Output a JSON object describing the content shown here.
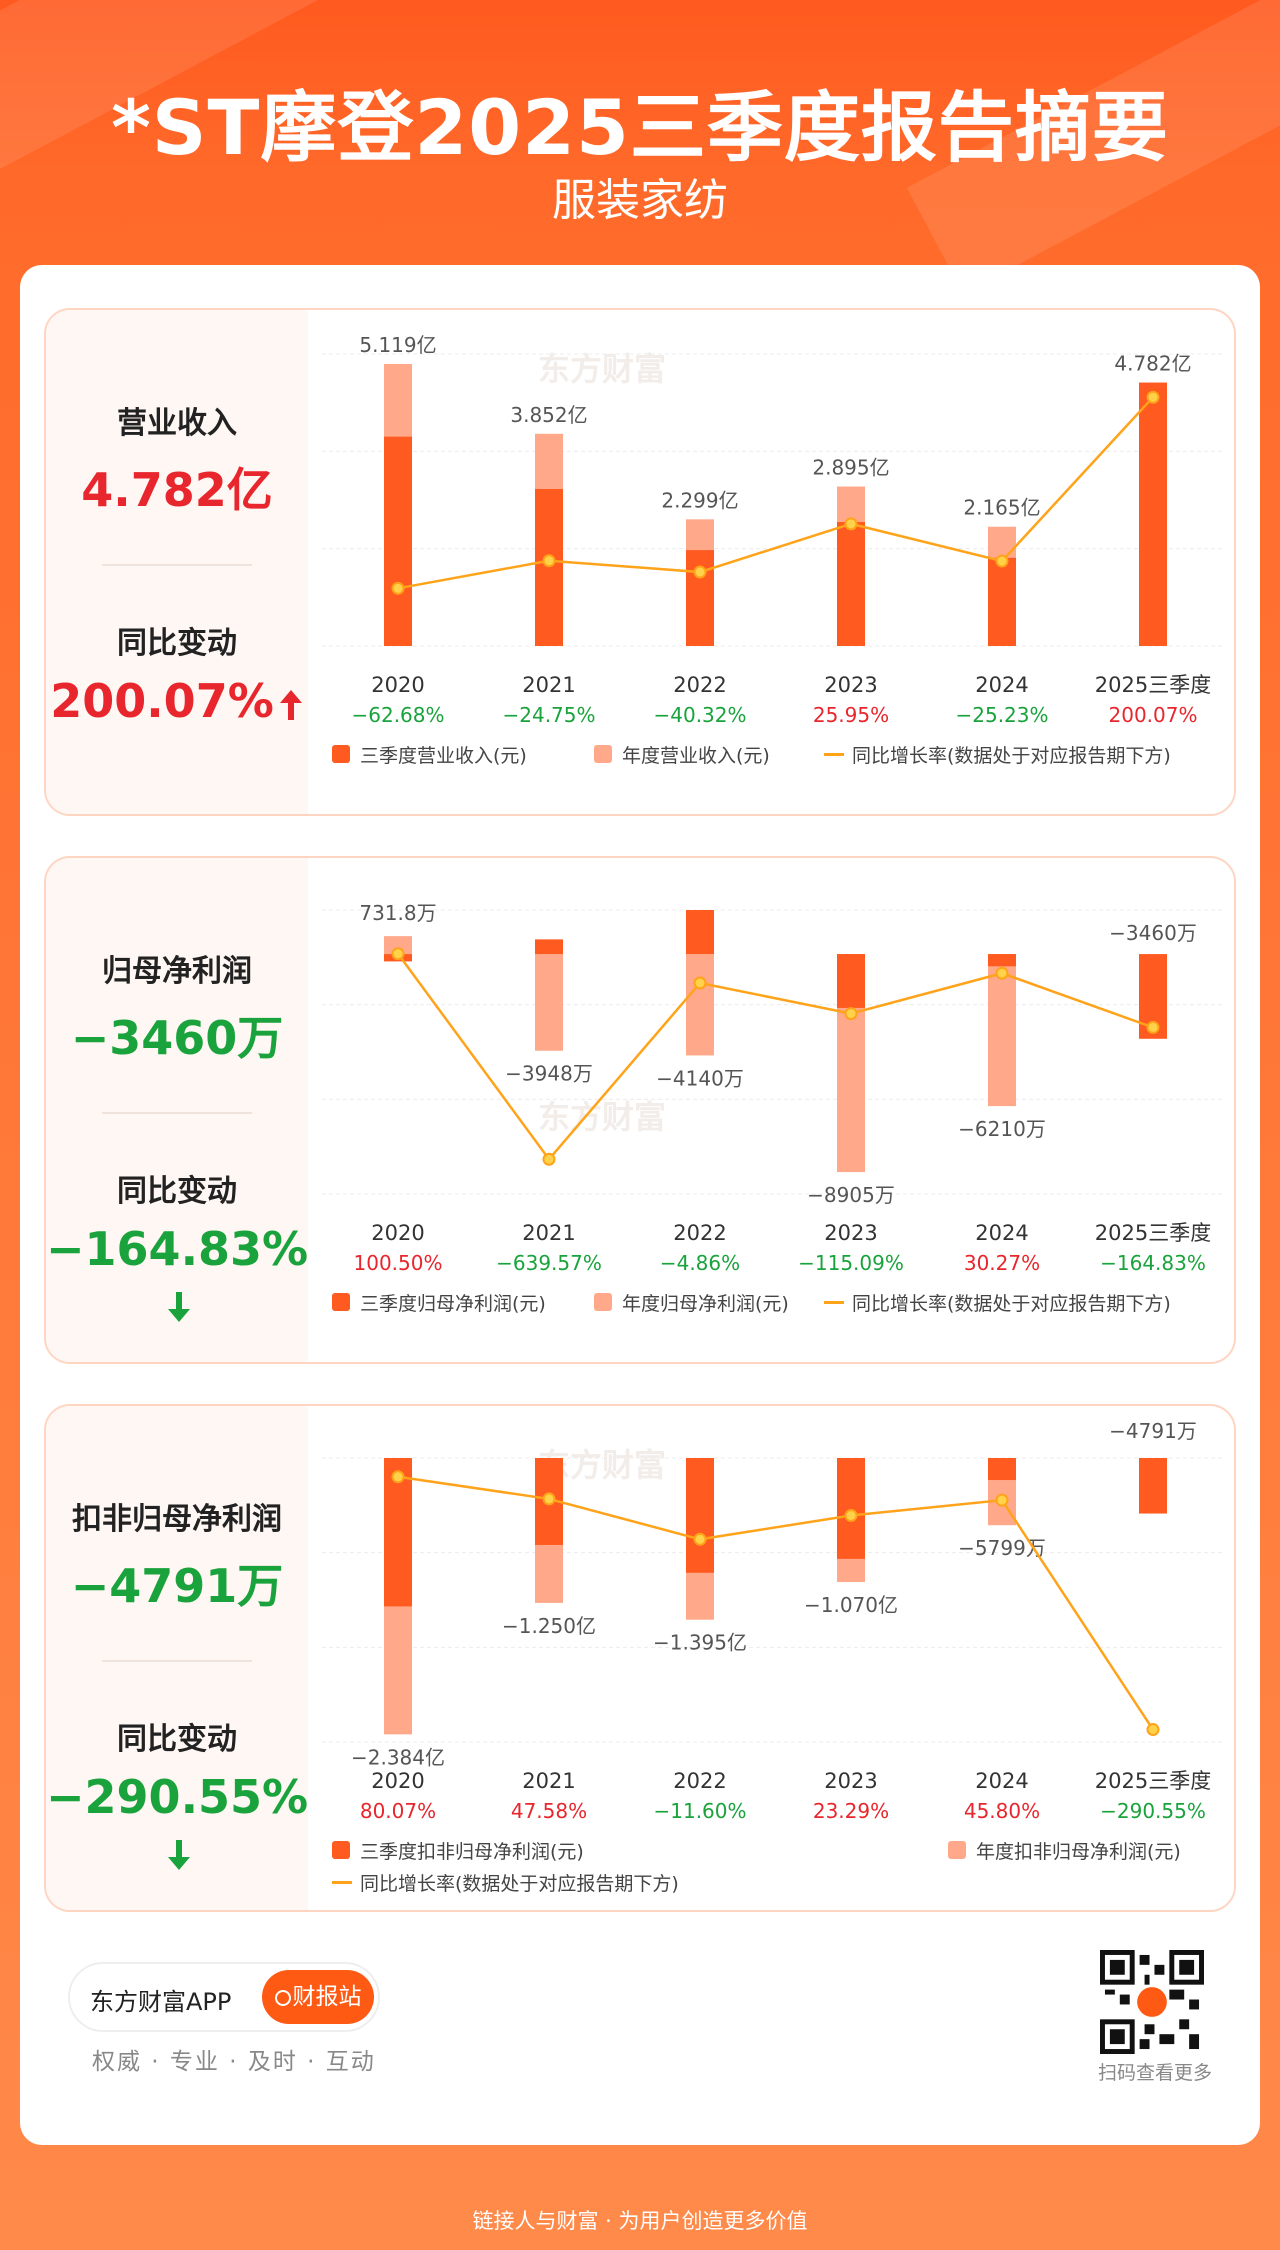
{
  "header": {
    "title": "*ST摩登2025三季度报告摘要",
    "subtitle": "服装家纺"
  },
  "colors": {
    "q3": "#ff5a1f",
    "annual": "#ffa88a",
    "line": "#ffa31a",
    "up": "#e8262d",
    "down": "#1aa33c"
  },
  "watermark": "东方财富",
  "panels": [
    {
      "side": {
        "metric_label": "营业收入",
        "metric_value": "4.782亿",
        "change_label": "同比变动",
        "change_value": "200.07%",
        "direction": "up"
      },
      "legend": [
        "三季度营业收入(元)",
        "年度营业收入(元)",
        "同比增长率(数据处于对应报告期下方)"
      ]
    },
    {
      "side": {
        "metric_label": "归母净利润",
        "metric_value": "−3460万",
        "change_label": "同比变动",
        "change_value": "−164.83%",
        "direction": "down"
      },
      "legend": [
        "三季度归母净利润(元)",
        "年度归母净利润(元)",
        "同比增长率(数据处于对应报告期下方)"
      ]
    },
    {
      "side": {
        "metric_label": "扣非归母净利润",
        "metric_value": "−4791万",
        "change_label": "同比变动",
        "change_value": "−290.55%",
        "direction": "down"
      },
      "legend": [
        "三季度扣非归母净利润(元)",
        "年度扣非归母净利润(元)",
        "同比增长率(数据处于对应报告期下方)"
      ]
    }
  ],
  "chart_data": [
    {
      "type": "bar",
      "categories": [
        "2020",
        "2021",
        "2022",
        "2023",
        "2024",
        "2025三季度"
      ],
      "series": [
        {
          "name": "三季度营业收入(元)",
          "values": [
            3.8,
            2.85,
            1.74,
            2.25,
            1.6,
            4.782
          ]
        },
        {
          "name": "年度营业收入(元)",
          "values": [
            5.119,
            3.852,
            2.299,
            2.895,
            2.165,
            null
          ]
        },
        {
          "name": "同比增长率(数据处于对应报告期下方)",
          "values": [
            -62.68,
            -24.75,
            -40.32,
            25.95,
            -25.23,
            200.07
          ]
        }
      ],
      "bar_labels": [
        "5.119亿",
        "3.852亿",
        "2.299亿",
        "2.895亿",
        "2.165亿",
        "4.782亿"
      ],
      "growth_labels": [
        "−62.68%",
        "−24.75%",
        "−40.32%",
        "25.95%",
        "−25.23%",
        "200.07%"
      ]
    },
    {
      "type": "bar",
      "categories": [
        "2020",
        "2021",
        "2022",
        "2023",
        "2024",
        "2025三季度"
      ],
      "series": [
        {
          "name": "三季度归母净利润(元)",
          "values": [
            -300,
            600,
            1800,
            -2200,
            -500,
            -3460
          ]
        },
        {
          "name": "年度归母净利润(元)",
          "values": [
            731.8,
            -3948,
            -4140,
            -8905,
            -6210,
            null
          ]
        },
        {
          "name": "同比增长率(数据处于对应报告期下方)",
          "values": [
            100.5,
            -639.57,
            -4.86,
            -115.09,
            30.27,
            -164.83
          ]
        }
      ],
      "bar_labels": [
        "731.8万",
        "−3948万",
        "−4140万",
        "−8905万",
        "−6210万",
        "−3460万"
      ],
      "growth_labels": [
        "100.50%",
        "−639.57%",
        "−4.86%",
        "−115.09%",
        "30.27%",
        "−164.83%"
      ]
    },
    {
      "type": "bar",
      "categories": [
        "2020",
        "2021",
        "2022",
        "2023",
        "2024",
        "2025三季度"
      ],
      "series": [
        {
          "name": "三季度扣非归母净利润(元)",
          "values": [
            -12800,
            -7500,
            -9900,
            -8700,
            -1900,
            -4791
          ]
        },
        {
          "name": "年度扣非归母净利润(元)",
          "values": [
            -23840,
            -12500,
            -13950,
            -10700,
            -5799,
            null
          ]
        },
        {
          "name": "同比增长率(数据处于对应报告期下方)",
          "values": [
            80.07,
            47.58,
            -11.6,
            23.29,
            45.8,
            -290.55
          ]
        }
      ],
      "bar_labels": [
        "−2.384亿",
        "−1.250亿",
        "−1.395亿",
        "−1.070亿",
        "−5799万",
        "−4791万"
      ],
      "growth_labels": [
        "80.07%",
        "47.58%",
        "−11.60%",
        "23.29%",
        "45.80%",
        "−290.55%"
      ]
    }
  ],
  "footer": {
    "app": "东方财富APP",
    "button": "财报站",
    "slogan": "权威 · 专业 · 及时 · 互动",
    "qr_caption": "扫码查看更多",
    "bottom": "链接人与财富 · 为用户创造更多价值"
  }
}
